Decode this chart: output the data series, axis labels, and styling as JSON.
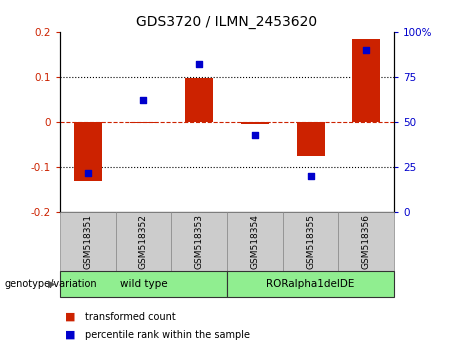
{
  "title": "GDS3720 / ILMN_2453620",
  "samples": [
    "GSM518351",
    "GSM518352",
    "GSM518353",
    "GSM518354",
    "GSM518355",
    "GSM518356"
  ],
  "red_bars": [
    -0.13,
    -0.003,
    0.097,
    -0.004,
    -0.075,
    0.185
  ],
  "blue_dot_right_scale": [
    22,
    62,
    82,
    43,
    20,
    90
  ],
  "ylim_left": [
    -0.2,
    0.2
  ],
  "ylim_right": [
    0,
    100
  ],
  "yticks_left": [
    -0.2,
    -0.1,
    0.0,
    0.1,
    0.2
  ],
  "yticks_right": [
    0,
    25,
    50,
    75,
    100
  ],
  "ytick_labels_left": [
    "-0.2",
    "-0.1",
    "0",
    "0.1",
    "0.2"
  ],
  "ytick_labels_right": [
    "0",
    "25",
    "50",
    "75",
    "100%"
  ],
  "genotype_label": "genotype/variation",
  "legend_red": "transformed count",
  "legend_blue": "percentile rank within the sample",
  "red_color": "#CC2200",
  "blue_color": "#0000CC",
  "bar_width": 0.5,
  "bg_plot": "#ffffff",
  "bg_xtick": "#cccccc",
  "green_color": "#90EE90",
  "gray_color": "#cccccc"
}
